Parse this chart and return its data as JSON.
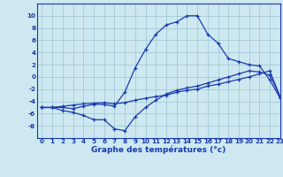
{
  "xlabel": "Graphe des températures (°c)",
  "background_color": "#cde8f0",
  "grid_color": "#9dc4d4",
  "line_color": "#1a3aad",
  "x_values": [
    0,
    1,
    2,
    3,
    4,
    5,
    6,
    7,
    8,
    9,
    10,
    11,
    12,
    13,
    14,
    15,
    16,
    17,
    18,
    19,
    20,
    21,
    22,
    23
  ],
  "line_min": [
    -5,
    -5,
    -5.5,
    -5.8,
    -6.3,
    -7.0,
    -7.0,
    -8.5,
    -8.8,
    -6.5,
    -5.0,
    -3.8,
    -2.8,
    -2.2,
    -1.8,
    -1.5,
    -1.0,
    -0.5,
    0.0,
    0.5,
    1.0,
    0.8,
    0.3,
    -3.2
  ],
  "line_max": [
    -5,
    -5,
    -5.0,
    -5.2,
    -4.8,
    -4.5,
    -4.5,
    -4.8,
    -2.5,
    1.5,
    4.5,
    7.0,
    8.5,
    9.0,
    10.0,
    10.0,
    7.0,
    5.5,
    3.0,
    2.5,
    2.0,
    1.8,
    -0.5,
    -3.5
  ],
  "line_avg": [
    -5,
    -5,
    -4.8,
    -4.6,
    -4.4,
    -4.3,
    -4.2,
    -4.4,
    -4.2,
    -3.8,
    -3.5,
    -3.2,
    -3.0,
    -2.5,
    -2.2,
    -2.0,
    -1.5,
    -1.2,
    -0.8,
    -0.4,
    0.0,
    0.5,
    1.0,
    -3.3
  ],
  "ylim": [
    -10,
    12
  ],
  "yticks": [
    -8,
    -6,
    -4,
    -2,
    0,
    2,
    4,
    6,
    8,
    10
  ],
  "xlim": [
    -0.5,
    23
  ],
  "xticks": [
    0,
    1,
    2,
    3,
    4,
    5,
    6,
    7,
    8,
    9,
    10,
    11,
    12,
    13,
    14,
    15,
    16,
    17,
    18,
    19,
    20,
    21,
    22,
    23
  ],
  "tick_fontsize": 5.2,
  "label_fontsize": 6.5
}
